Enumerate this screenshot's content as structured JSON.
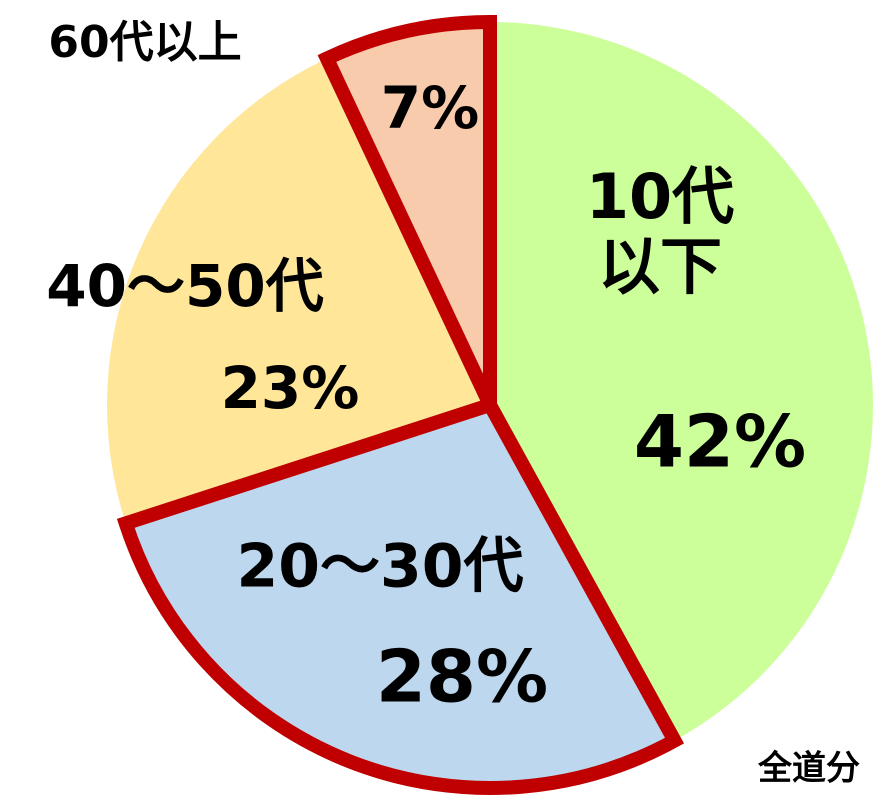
{
  "chart_data": {
    "type": "pie",
    "categories": [
      "10代\n以下",
      "20～30代",
      "40～50代",
      "60代以上"
    ],
    "values": [
      42,
      28,
      23,
      7
    ],
    "value_labels": [
      "42%",
      "28%",
      "23%",
      "7%"
    ],
    "colors": [
      "#ccff99",
      "#bdd7ee",
      "#ffe699",
      "#f8cbad"
    ],
    "outlined": [
      false,
      true,
      false,
      true
    ],
    "outline_color": "#c00000",
    "annotation": "全道分"
  }
}
